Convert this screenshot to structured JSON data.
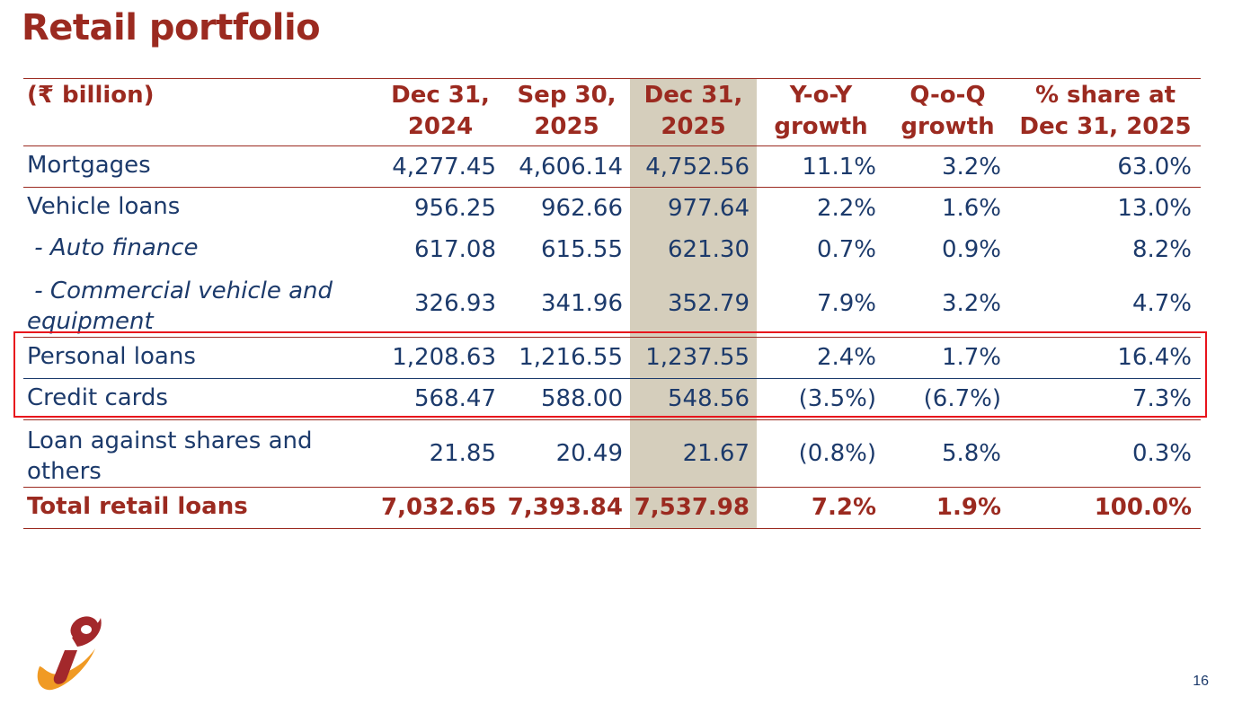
{
  "title": "Retail portfolio",
  "table": {
    "headers": {
      "label": "(₹ billion)",
      "c1_line1": "Dec 31,",
      "c1_line2": "2024",
      "c2_line1": "Sep 30,",
      "c2_line2": "2025",
      "c3_line1": "Dec 31,",
      "c3_line2": "2025",
      "c4_line1": "Y-o-Y",
      "c4_line2": "growth",
      "c5_line1": "Q-o-Q",
      "c5_line2": "growth",
      "c6_line1": "% share at",
      "c6_line2": "Dec 31, 2025"
    },
    "rows": [
      {
        "label": "Mortgages",
        "v1": "4,277.45",
        "v2": "4,606.14",
        "v3": "4,752.56",
        "yoy": "11.1%",
        "qoq": "3.2%",
        "share": "63.0%"
      },
      {
        "label": "Vehicle loans",
        "v1": "956.25",
        "v2": "962.66",
        "v3": "977.64",
        "yoy": "2.2%",
        "qoq": "1.6%",
        "share": "13.0%"
      },
      {
        "label": " - Auto finance",
        "v1": "617.08",
        "v2": "615.55",
        "v3": "621.30",
        "yoy": "0.7%",
        "qoq": "0.9%",
        "share": "8.2%"
      },
      {
        "label": " - Commercial vehicle and equipment",
        "v1": "326.93",
        "v2": "341.96",
        "v3": "352.79",
        "yoy": "7.9%",
        "qoq": "3.2%",
        "share": "4.7%"
      },
      {
        "label": "Personal loans",
        "v1": "1,208.63",
        "v2": "1,216.55",
        "v3": "1,237.55",
        "yoy": "2.4%",
        "qoq": "1.7%",
        "share": "16.4%"
      },
      {
        "label": "Credit cards",
        "v1": "568.47",
        "v2": "588.00",
        "v3": "548.56",
        "yoy": "(3.5%)",
        "qoq": "(6.7%)",
        "share": "7.3%"
      },
      {
        "label": "Loan against shares and others",
        "v1": "21.85",
        "v2": "20.49",
        "v3": "21.67",
        "yoy": "(0.8%)",
        "qoq": "5.8%",
        "share": "0.3%"
      },
      {
        "label": "Total retail loans",
        "v1": "7,032.65",
        "v2": "7,393.84",
        "v3": "7,537.98",
        "yoy": "7.2%",
        "qoq": "1.9%",
        "share": "100.0%"
      }
    ]
  },
  "page_number": "16",
  "colors": {
    "title": "#9b2a20",
    "body_text": "#1c3a6b",
    "highlight_column": "#d5cebc",
    "highlight_box": "#e8141c",
    "logo_orange": "#f09a24",
    "logo_red": "#a3282b"
  },
  "logo_icon": "bank-logo-icon"
}
